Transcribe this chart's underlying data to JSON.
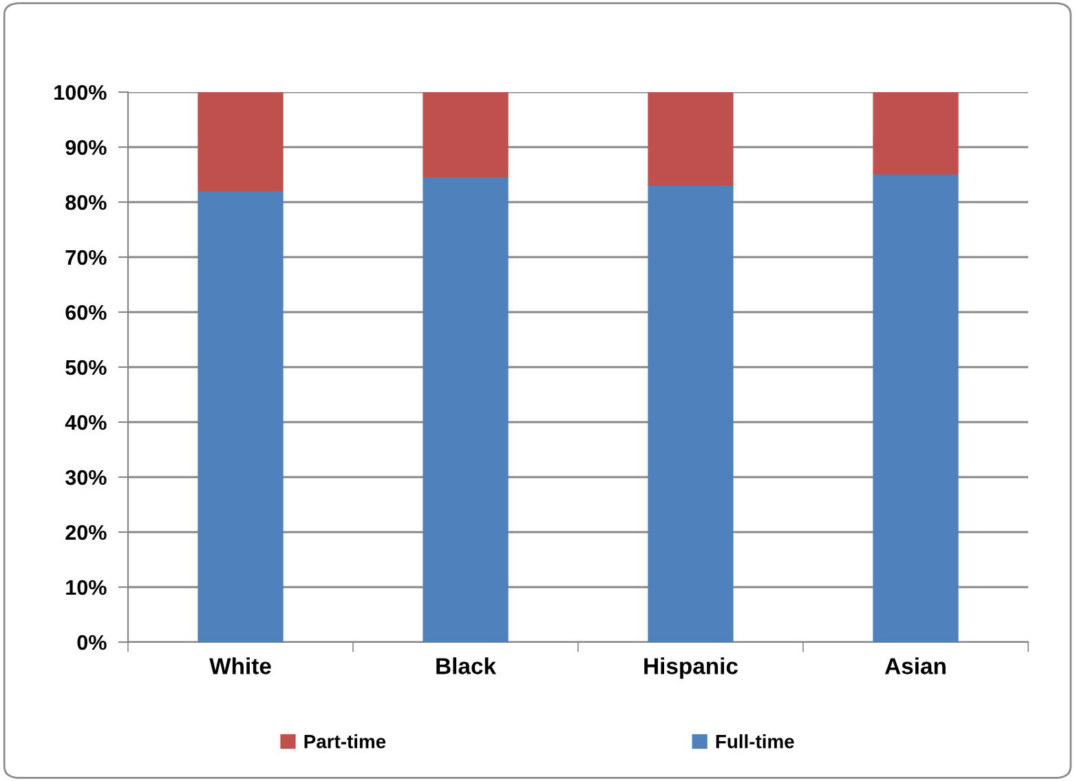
{
  "chart_data": {
    "type": "bar",
    "stacked": true,
    "categories": [
      "White",
      "Black",
      "Hispanic",
      "Asian"
    ],
    "series": [
      {
        "name": "Full-time",
        "color": "#4f81bd",
        "values": [
          82,
          84.5,
          83,
          85
        ]
      },
      {
        "name": "Part-time",
        "color": "#c0504d",
        "values": [
          18,
          15.5,
          17,
          15
        ]
      }
    ],
    "ylim": [
      0,
      100
    ],
    "yticks": [
      {
        "value": 0,
        "label": "0%"
      },
      {
        "value": 10,
        "label": "10%"
      },
      {
        "value": 20,
        "label": "20%"
      },
      {
        "value": 30,
        "label": "30%"
      },
      {
        "value": 40,
        "label": "40%"
      },
      {
        "value": 50,
        "label": "50%"
      },
      {
        "value": 60,
        "label": "60%"
      },
      {
        "value": 70,
        "label": "70%"
      },
      {
        "value": 80,
        "label": "80%"
      },
      {
        "value": 90,
        "label": "90%"
      },
      {
        "value": 100,
        "label": "100%"
      }
    ],
    "grid": "y",
    "legend": "bottom"
  }
}
